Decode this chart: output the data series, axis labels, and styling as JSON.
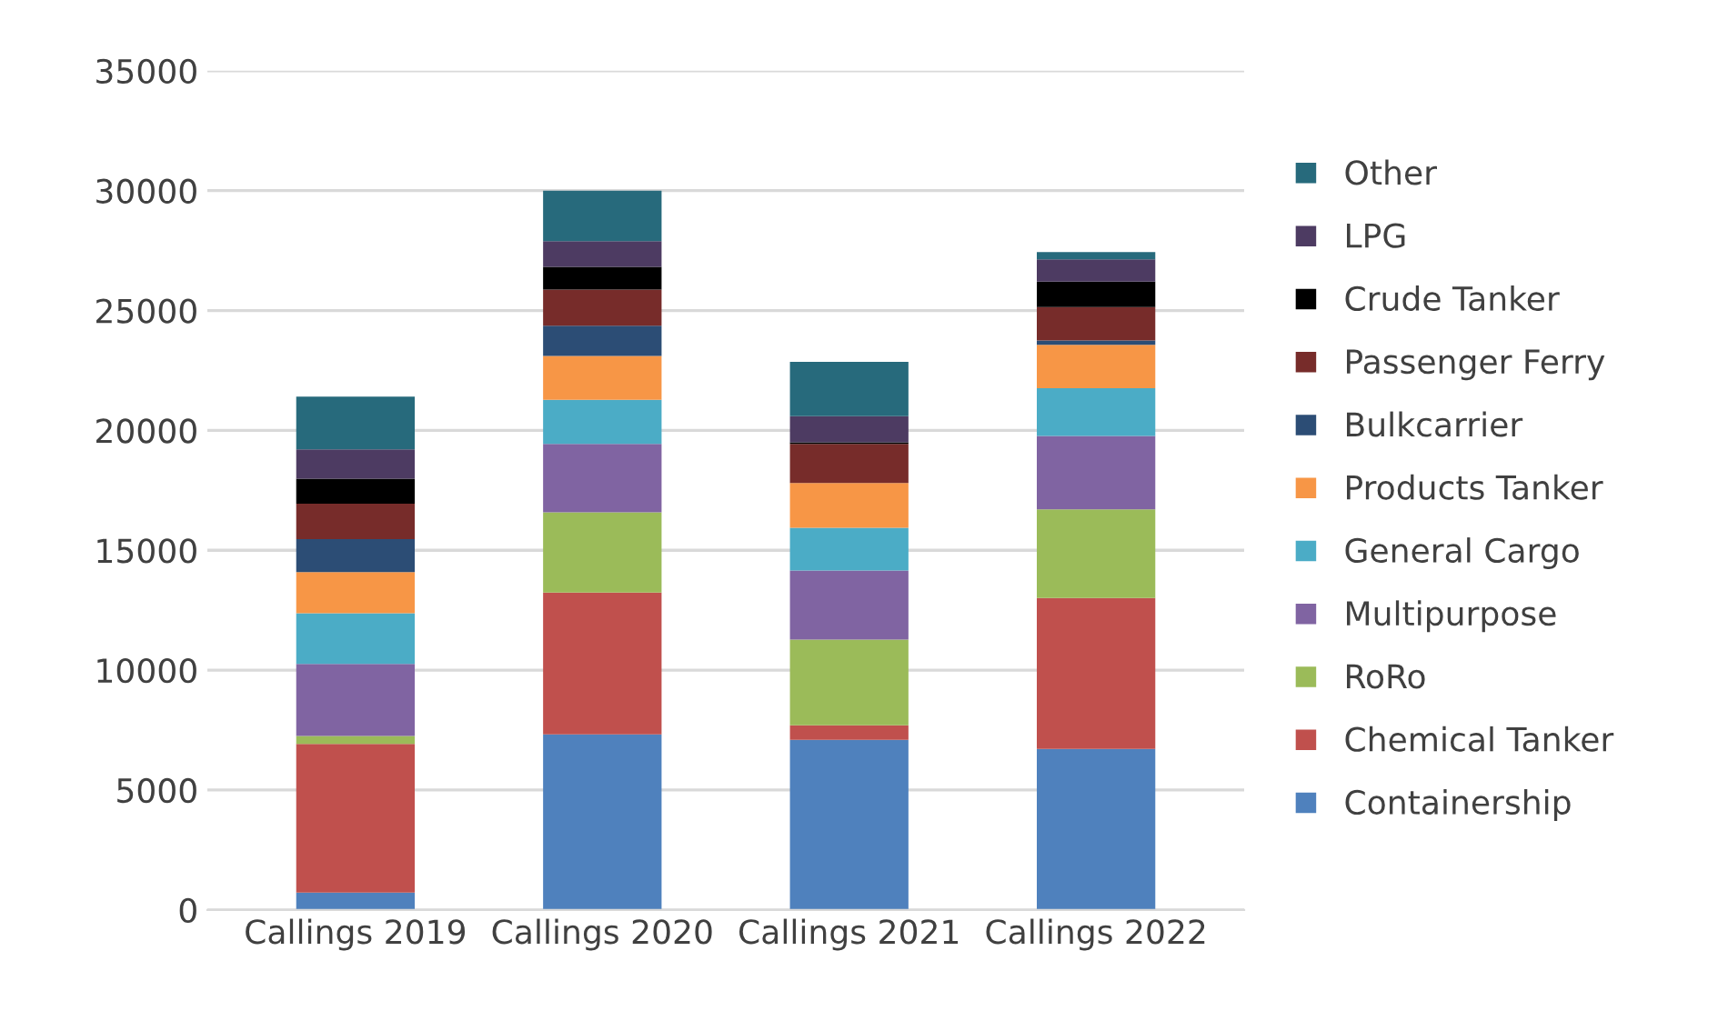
{
  "chart_data": {
    "type": "bar",
    "stacked": true,
    "categories": [
      "Callings 2019",
      "Callings 2020",
      "Callings 2021",
      "Callings 2022"
    ],
    "series": [
      {
        "name": "Containership",
        "color": "#4f81bd",
        "values": [
          720,
          7320,
          7090,
          6710
        ]
      },
      {
        "name": "Chemical Tanker",
        "color": "#c0504d",
        "values": [
          6200,
          5920,
          610,
          6300
        ]
      },
      {
        "name": "RoRo",
        "color": "#9bbb59",
        "values": [
          330,
          3340,
          3570,
          3700
        ]
      },
      {
        "name": "Multipurpose",
        "color": "#8064a2",
        "values": [
          3010,
          2860,
          2890,
          3060
        ]
      },
      {
        "name": "General Cargo",
        "color": "#4bacc6",
        "values": [
          2110,
          1840,
          1780,
          1990
        ]
      },
      {
        "name": "Products Tanker",
        "color": "#f79646",
        "values": [
          1720,
          1830,
          1870,
          1810
        ]
      },
      {
        "name": "Bulkcarrier",
        "color": "#2c4d75",
        "values": [
          1370,
          1260,
          0,
          180
        ]
      },
      {
        "name": "Passenger Ferry",
        "color": "#772c2a",
        "values": [
          1480,
          1500,
          1630,
          1390
        ]
      },
      {
        "name": "Crude Tanker",
        "color": "#000000",
        "values": [
          1050,
          950,
          60,
          1070
        ]
      },
      {
        "name": "LPG",
        "color": "#4d3b62",
        "values": [
          1220,
          1070,
          1090,
          920
        ]
      },
      {
        "name": "Other",
        "color": "#276a7c",
        "values": [
          2200,
          2110,
          2270,
          310
        ]
      }
    ],
    "ylim": [
      0,
      35000
    ],
    "yticks": [
      0,
      5000,
      10000,
      15000,
      20000,
      25000,
      30000,
      35000
    ],
    "grid": "y",
    "legend": "right"
  }
}
